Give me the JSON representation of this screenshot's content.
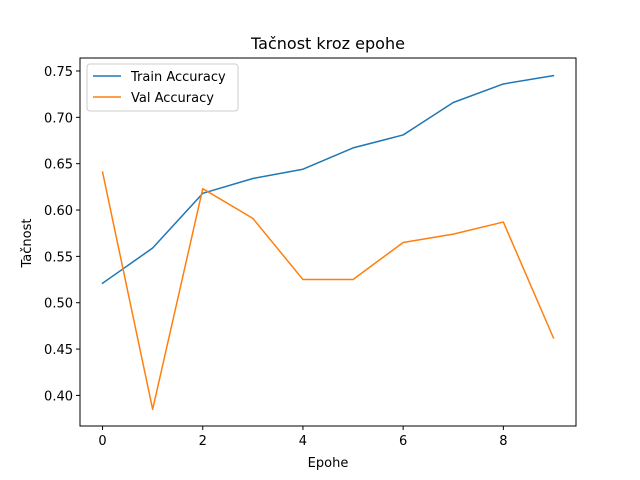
{
  "chart_data": {
    "type": "line",
    "title": "Tačnost kroz epohe",
    "xlabel": "Epohe",
    "ylabel": "Tačnost",
    "x": [
      0,
      1,
      2,
      3,
      4,
      5,
      6,
      7,
      8,
      9
    ],
    "xlim": [
      -0.45,
      9.45
    ],
    "ylim": [
      0.367,
      0.764
    ],
    "xticks": [
      0,
      2,
      4,
      6,
      8
    ],
    "yticks": [
      0.4,
      0.45,
      0.5,
      0.55,
      0.6,
      0.65,
      0.7,
      0.75
    ],
    "ytick_labels": [
      "0.40",
      "0.45",
      "0.50",
      "0.55",
      "0.60",
      "0.65",
      "0.70",
      "0.75"
    ],
    "xtick_labels": [
      "0",
      "2",
      "4",
      "6",
      "8"
    ],
    "grid": false,
    "legend_position": "upper-left",
    "series": [
      {
        "name": "Train Accuracy",
        "color": "#1f77b4",
        "values": [
          0.521,
          0.559,
          0.618,
          0.634,
          0.644,
          0.667,
          0.681,
          0.716,
          0.736,
          0.745
        ]
      },
      {
        "name": "Val Accuracy",
        "color": "#ff7f0e",
        "values": [
          0.641,
          0.385,
          0.623,
          0.591,
          0.525,
          0.525,
          0.565,
          0.574,
          0.587,
          0.462
        ]
      }
    ]
  }
}
